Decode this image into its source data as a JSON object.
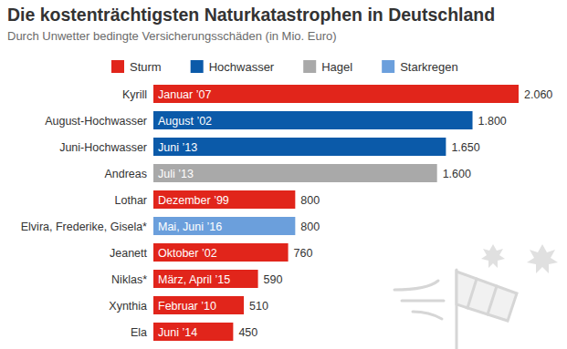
{
  "chart_data": {
    "type": "bar",
    "orientation": "horizontal",
    "stacked": false,
    "title": "Die kostenträchtigsten Naturkatastrophen in Deutschland",
    "subtitle": "Durch Unwetter bedingte Versicherungsschäden (in Mio. Euro)",
    "categories": [
      "Kyrill",
      "August-Hochwasser",
      "Juni-Hochwasser",
      "Andreas",
      "Lothar",
      "Elvira, Frederike, Gisela*",
      "Jeanett",
      "Niklas*",
      "Xynthia",
      "Ela"
    ],
    "annotations": [
      "Januar ’07",
      "August ’02",
      "Juni ’13",
      "Juli ’13",
      "Dezember ’99",
      "Mai, Juni ’16",
      "Oktober ’02",
      "März, April ’15",
      "Februar ’10",
      "Juni ’14"
    ],
    "series": [
      {
        "name": "Sturm",
        "color": "#e1251b",
        "values": [
          2060,
          null,
          null,
          null,
          800,
          null,
          760,
          590,
          510,
          450
        ],
        "value_labels": [
          "2.060",
          null,
          null,
          null,
          "800",
          null,
          "760",
          "590",
          "510",
          "450"
        ]
      },
      {
        "name": "Hochwasser",
        "color": "#0b5aa9",
        "values": [
          null,
          1800,
          1650,
          null,
          null,
          null,
          null,
          null,
          null,
          null
        ],
        "value_labels": [
          null,
          "1.800",
          "1.650",
          null,
          null,
          null,
          null,
          null,
          null,
          null
        ]
      },
      {
        "name": "Hagel",
        "color": "#a9a9a9",
        "values": [
          null,
          null,
          null,
          1600,
          null,
          null,
          null,
          null,
          null,
          null
        ],
        "value_labels": [
          null,
          null,
          null,
          "1.600",
          null,
          null,
          null,
          null,
          null,
          null
        ]
      },
      {
        "name": "Starkregen",
        "color": "#6b9fdc",
        "values": [
          null,
          null,
          null,
          null,
          null,
          800,
          null,
          null,
          null,
          null
        ],
        "value_labels": [
          null,
          null,
          null,
          null,
          null,
          "800",
          null,
          null,
          null,
          null
        ]
      }
    ],
    "xlim": [
      0,
      2060
    ],
    "grid": false,
    "legend": "top",
    "data_labels": true,
    "tick_labels": false
  }
}
